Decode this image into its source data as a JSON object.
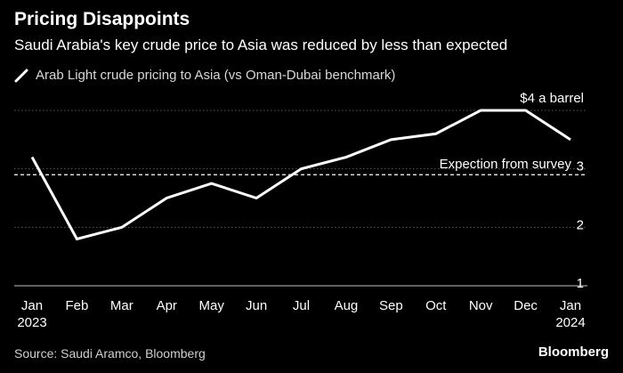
{
  "title": "Pricing Disappoints",
  "subtitle": "Saudi Arabia's key crude price to Asia was reduced by less than expected",
  "legend_label": "Arab Light crude pricing to Asia (vs Oman-Dubai benchmark)",
  "source": "Source: Saudi Aramco, Bloomberg",
  "brand": "Bloomberg",
  "colors": {
    "background": "#000000",
    "line": "#ffffff",
    "grid": "#5a5a5a",
    "text": "#ffffff",
    "muted": "#cfcfcf"
  },
  "chart_data": {
    "type": "line",
    "categories": [
      "Jan\n2023",
      "Feb",
      "Mar",
      "Apr",
      "May",
      "Jun",
      "Jul",
      "Aug",
      "Sep",
      "Oct",
      "Nov",
      "Dec",
      "Jan\n2024"
    ],
    "series": [
      {
        "name": "Arab Light crude pricing to Asia (vs Oman-Dubai benchmark)",
        "values": [
          3.2,
          1.8,
          2.0,
          2.5,
          2.75,
          2.5,
          3.0,
          3.2,
          3.5,
          3.6,
          4.0,
          4.0,
          3.5
        ]
      }
    ],
    "yticks": [
      1,
      2,
      3,
      4
    ],
    "ytick_labels": [
      "1",
      "2",
      "3",
      "$4 a barrel"
    ],
    "ylim": [
      1,
      4
    ],
    "grid": true,
    "reference_line": {
      "value": 2.9,
      "label": "Expection from survey",
      "style": "dashed"
    }
  }
}
